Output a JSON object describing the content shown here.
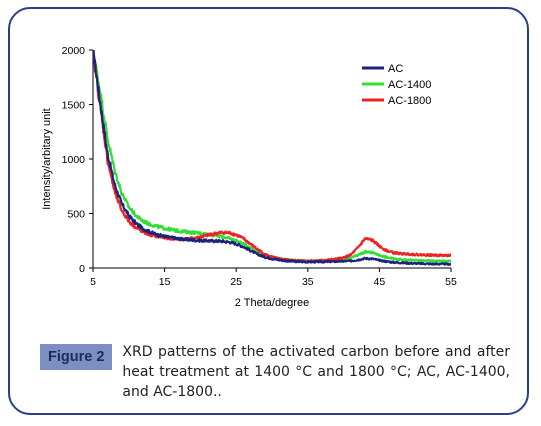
{
  "chart_data": {
    "type": "line",
    "xlabel": "2 Theta/degree",
    "ylabel": "Intensity/arbitary unit",
    "xlim": [
      5,
      55
    ],
    "ylim": [
      0,
      2000
    ],
    "xticks": [
      5,
      15,
      25,
      35,
      45,
      55
    ],
    "yticks": [
      0,
      500,
      1000,
      1500,
      2000
    ],
    "legend_position": "top-right",
    "grid": false,
    "series": [
      {
        "name": "AC",
        "color": "#1a237e",
        "points": [
          [
            5,
            2000
          ],
          [
            6,
            1520
          ],
          [
            7,
            1060
          ],
          [
            8,
            770
          ],
          [
            9,
            590
          ],
          [
            10,
            480
          ],
          [
            11,
            410
          ],
          [
            12,
            360
          ],
          [
            13,
            330
          ],
          [
            14,
            305
          ],
          [
            15,
            290
          ],
          [
            16,
            278
          ],
          [
            17,
            268
          ],
          [
            18,
            262
          ],
          [
            19,
            256
          ],
          [
            20,
            252
          ],
          [
            21,
            250
          ],
          [
            22,
            248
          ],
          [
            23,
            246
          ],
          [
            24,
            238
          ],
          [
            25,
            222
          ],
          [
            26,
            195
          ],
          [
            27,
            160
          ],
          [
            28,
            125
          ],
          [
            29,
            100
          ],
          [
            30,
            85
          ],
          [
            31,
            74
          ],
          [
            32,
            66
          ],
          [
            33,
            60
          ],
          [
            34,
            57
          ],
          [
            35,
            56
          ],
          [
            36,
            56
          ],
          [
            37,
            57
          ],
          [
            38,
            58
          ],
          [
            39,
            60
          ],
          [
            40,
            62
          ],
          [
            41,
            65
          ],
          [
            42,
            75
          ],
          [
            43,
            88
          ],
          [
            44,
            85
          ],
          [
            45,
            70
          ],
          [
            46,
            60
          ],
          [
            47,
            52
          ],
          [
            48,
            48
          ],
          [
            49,
            45
          ],
          [
            50,
            42
          ],
          [
            51,
            40
          ],
          [
            52,
            38
          ],
          [
            53,
            37
          ],
          [
            54,
            36
          ],
          [
            55,
            35
          ]
        ]
      },
      {
        "name": "AC-1400",
        "color": "#33dd33",
        "points": [
          [
            5,
            2000
          ],
          [
            6,
            1620
          ],
          [
            7,
            1200
          ],
          [
            8,
            900
          ],
          [
            9,
            690
          ],
          [
            10,
            560
          ],
          [
            11,
            480
          ],
          [
            12,
            430
          ],
          [
            13,
            400
          ],
          [
            14,
            380
          ],
          [
            15,
            365
          ],
          [
            16,
            350
          ],
          [
            17,
            340
          ],
          [
            18,
            332
          ],
          [
            19,
            325
          ],
          [
            20,
            318
          ],
          [
            21,
            310
          ],
          [
            22,
            300
          ],
          [
            23,
            288
          ],
          [
            24,
            272
          ],
          [
            25,
            252
          ],
          [
            26,
            222
          ],
          [
            27,
            185
          ],
          [
            28,
            148
          ],
          [
            29,
            118
          ],
          [
            30,
            98
          ],
          [
            31,
            86
          ],
          [
            32,
            77
          ],
          [
            33,
            71
          ],
          [
            34,
            67
          ],
          [
            35,
            65
          ],
          [
            36,
            65
          ],
          [
            37,
            66
          ],
          [
            38,
            68
          ],
          [
            39,
            72
          ],
          [
            40,
            78
          ],
          [
            41,
            92
          ],
          [
            42,
            118
          ],
          [
            43,
            148
          ],
          [
            44,
            142
          ],
          [
            45,
            118
          ],
          [
            46,
            98
          ],
          [
            47,
            85
          ],
          [
            48,
            78
          ],
          [
            49,
            73
          ],
          [
            50,
            70
          ],
          [
            51,
            68
          ],
          [
            52,
            66
          ],
          [
            53,
            65
          ],
          [
            54,
            64
          ],
          [
            55,
            63
          ]
        ]
      },
      {
        "name": "AC-1800",
        "color": "#ee2222",
        "points": [
          [
            5,
            2000
          ],
          [
            6,
            1480
          ],
          [
            7,
            1000
          ],
          [
            8,
            700
          ],
          [
            9,
            530
          ],
          [
            10,
            430
          ],
          [
            11,
            370
          ],
          [
            12,
            330
          ],
          [
            13,
            305
          ],
          [
            14,
            290
          ],
          [
            15,
            278
          ],
          [
            16,
            270
          ],
          [
            17,
            265
          ],
          [
            18,
            265
          ],
          [
            19,
            272
          ],
          [
            20,
            285
          ],
          [
            21,
            300
          ],
          [
            22,
            315
          ],
          [
            23,
            325
          ],
          [
            24,
            322
          ],
          [
            25,
            305
          ],
          [
            26,
            270
          ],
          [
            27,
            220
          ],
          [
            28,
            170
          ],
          [
            29,
            125
          ],
          [
            30,
            100
          ],
          [
            31,
            85
          ],
          [
            32,
            76
          ],
          [
            33,
            70
          ],
          [
            34,
            67
          ],
          [
            35,
            66
          ],
          [
            36,
            67
          ],
          [
            37,
            70
          ],
          [
            38,
            75
          ],
          [
            39,
            82
          ],
          [
            40,
            95
          ],
          [
            41,
            120
          ],
          [
            42,
            185
          ],
          [
            43,
            270
          ],
          [
            44,
            255
          ],
          [
            45,
            200
          ],
          [
            46,
            160
          ],
          [
            47,
            140
          ],
          [
            48,
            132
          ],
          [
            49,
            128
          ],
          [
            50,
            124
          ],
          [
            51,
            121
          ],
          [
            52,
            119
          ],
          [
            53,
            117
          ],
          [
            54,
            116
          ],
          [
            55,
            115
          ]
        ]
      }
    ]
  },
  "caption": {
    "label": "Figure 2",
    "text": "XRD patterns of the activated carbon before and after heat treatment at 1400 °C and 1800 °C; AC, AC-1400, and AC-1800.."
  }
}
